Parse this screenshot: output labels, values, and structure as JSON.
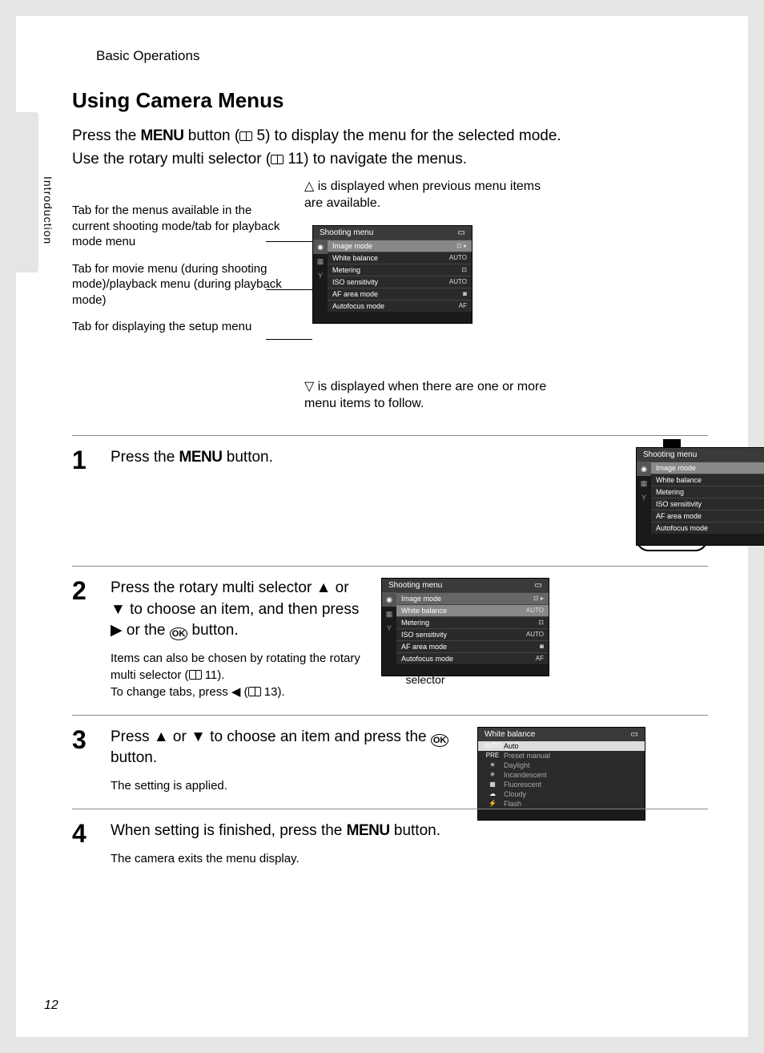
{
  "breadcrumb": "Basic Operations",
  "side_tab": "Introduction",
  "page_number": "12",
  "title": "Using Camera Menus",
  "intro_line1_a": "Press the ",
  "intro_line1_b": " button (",
  "intro_line1_c": " 5) to display the menu for the selected mode.",
  "intro_line2_a": "Use the rotary multi selector (",
  "intro_line2_b": " 11) to navigate the menus.",
  "menu_word": "MENU",
  "callout_tab_shooting": "Tab for the menus available in the current shooting mode/tab for playback mode menu",
  "callout_tab_movie": "Tab for movie menu (during shooting mode)/playback menu (during playback mode)",
  "callout_tab_setup": "Tab for displaying the setup menu",
  "above_note": "△ is displayed when previous menu items are available.",
  "below_note": "▽ is displayed when there are one or more menu items to follow.",
  "screen": {
    "title": "Shooting menu",
    "items": [
      {
        "label": "Image mode",
        "val": "⊡ ▸"
      },
      {
        "label": "White balance",
        "val": "AUTO"
      },
      {
        "label": "Metering",
        "val": "⊡"
      },
      {
        "label": "ISO sensitivity",
        "val": "AUTO"
      },
      {
        "label": "AF area mode",
        "val": "◙"
      },
      {
        "label": "Autofocus mode",
        "val": "AF"
      }
    ]
  },
  "step1_num": "1",
  "step1_text_a": "Press the ",
  "step1_text_b": " button.",
  "step2_num": "2",
  "step2_text": "Press the rotary multi selector ▲ or ▼ to choose an item, and then press ▶ or the ",
  "step2_text_b": " button.",
  "step2_sub_a": "Items can also be chosen by rotating the rotary multi selector (",
  "step2_sub_b": " 11).",
  "step2_sub2_a": "To change tabs, press ◀ (",
  "step2_sub2_b": " 13).",
  "rotary_label": "Rotary multi selector",
  "step3_num": "3",
  "step3_text_a": "Press ▲ or ▼ to choose an item and press the ",
  "step3_text_b": " button.",
  "step3_sub": "The setting is applied.",
  "wb_screen": {
    "title": "White balance",
    "items": [
      {
        "icon": "AUTO",
        "label": "Auto"
      },
      {
        "icon": "PRE",
        "label": "Preset manual"
      },
      {
        "icon": "☀",
        "label": "Daylight"
      },
      {
        "icon": "✳",
        "label": "Incandescent"
      },
      {
        "icon": "▦",
        "label": "Fluorescent"
      },
      {
        "icon": "☁",
        "label": "Cloudy"
      },
      {
        "icon": "⚡",
        "label": "Flash"
      }
    ]
  },
  "step4_num": "4",
  "step4_text_a": "When setting is finished, press the ",
  "step4_text_b": " button.",
  "step4_sub": "The camera exits the menu display.",
  "ok_label": "OK"
}
